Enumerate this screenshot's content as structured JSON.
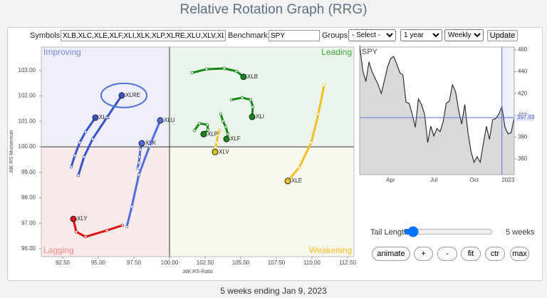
{
  "header": {
    "title": "Relative Rotation Graph (RRG)"
  },
  "controls": {
    "symbols_label": "Symbols:",
    "symbols": "XLB,XLC,XLE,XLF,XLI,XLK,XLP,XLRE,XLU,XLV,XL",
    "benchmark_label": "Benchmark:",
    "benchmark": "SPY",
    "groups_label": "Groups:",
    "groups": "- Select -",
    "period": "1 year",
    "interval": "Weekly",
    "update": "Update"
  },
  "chart_data": [
    {
      "type": "rrg",
      "xlabel": "JdK RS-Ratio",
      "ylabel": "JdK RS-Momentum",
      "center": 100,
      "quadrants": [
        {
          "label": "Improving",
          "color": "#7b86d6"
        },
        {
          "label": "Leading",
          "color": "#3aa53a"
        },
        {
          "label": "Weakening",
          "color": "#f0c020"
        },
        {
          "label": "Lagging",
          "color": "#ee8a8a"
        }
      ],
      "xlim": [
        91.0,
        112.95
      ],
      "ylim": [
        95.69,
        103.92
      ],
      "xticks": [
        {
          "value": 92.5,
          "label": "92.50"
        },
        {
          "value": 95,
          "label": "95.00"
        },
        {
          "value": 97.5,
          "label": "97.50"
        },
        {
          "value": 100,
          "label": "100.00"
        },
        {
          "value": 102.5,
          "label": "102.50"
        },
        {
          "value": 105,
          "label": "105.00"
        },
        {
          "value": 107.5,
          "label": "107.50"
        },
        {
          "value": 110,
          "label": "110.00"
        },
        {
          "value": 112.5,
          "label": "112.50"
        }
      ],
      "yticks": [
        {
          "value": 96,
          "label": "96.00"
        },
        {
          "value": 97,
          "label": "97.00"
        },
        {
          "value": 98,
          "label": "98.00"
        },
        {
          "value": 99,
          "label": "99.00"
        },
        {
          "value": 100,
          "label": "100.00"
        },
        {
          "value": 101,
          "label": "101.00"
        },
        {
          "value": 102,
          "label": "102.00"
        },
        {
          "value": 103,
          "label": "103.00"
        }
      ],
      "series": [
        {
          "name": "XLB",
          "color": "#128a12",
          "x": [
            101.6,
            102.6,
            103.85,
            104.7,
            105.2
          ],
          "values": [
            102.91,
            103.05,
            103.08,
            102.97,
            102.75
          ]
        },
        {
          "name": "XLC",
          "color": "#3553c9",
          "x": [
            93.1,
            93.35,
            93.7,
            94.1,
            94.8
          ],
          "values": [
            99.22,
            99.66,
            100.17,
            100.59,
            101.15
          ]
        },
        {
          "name": "XLE",
          "color": "#f0c020",
          "x": [
            110.85,
            110.45,
            109.95,
            109.1,
            108.3
          ],
          "values": [
            102.41,
            101.29,
            100.17,
            99.19,
            98.66
          ]
        },
        {
          "name": "XLF",
          "color": "#128a12",
          "x": [
            103.6,
            103.75,
            103.95,
            104.1,
            104.0
          ],
          "values": [
            101.29,
            101.01,
            100.78,
            100.5,
            100.31
          ]
        },
        {
          "name": "XLI",
          "color": "#128a12",
          "x": [
            104.35,
            105.1,
            105.7,
            105.85,
            105.8
          ],
          "values": [
            101.85,
            101.93,
            101.85,
            101.57,
            101.18
          ]
        },
        {
          "name": "XLK",
          "color": "#4d6de0",
          "x": [
            97.75,
            97.85,
            97.9,
            97.95,
            98.05
          ],
          "values": [
            99.16,
            99.38,
            99.61,
            99.89,
            100.14
          ]
        },
        {
          "name": "XLP",
          "color": "#128a12",
          "x": [
            101.75,
            102.1,
            102.65,
            102.7,
            102.4
          ],
          "values": [
            100.64,
            100.92,
            100.87,
            100.67,
            100.5
          ]
        },
        {
          "name": "XLRE",
          "color": "#3553c9",
          "highlight": true,
          "x": [
            93.6,
            94.0,
            94.6,
            95.6,
            96.65
          ],
          "values": [
            98.88,
            99.61,
            100.31,
            101.15,
            102.02
          ]
        },
        {
          "name": "XLU",
          "color": "#4d6de0",
          "x": [
            97.0,
            97.35,
            97.85,
            98.6,
            99.35
          ],
          "values": [
            96.86,
            97.65,
            98.91,
            100.03,
            101.04
          ]
        },
        {
          "name": "XLV",
          "color": "#f0c020",
          "x": [
            103.5,
            103.4,
            103.3,
            103.25,
            103.2
          ],
          "values": [
            100.67,
            100.45,
            100.17,
            99.97,
            99.8
          ]
        },
        {
          "name": "XLY",
          "color": "#dd1111",
          "x": [
            96.7,
            95.6,
            94.1,
            93.45,
            93.25
          ],
          "values": [
            96.92,
            96.72,
            96.47,
            96.67,
            97.17
          ]
        }
      ]
    },
    {
      "type": "line",
      "title": "SPY",
      "color": "#222222",
      "current": 397.93,
      "ylim": [
        345.6,
        462.6
      ],
      "yticks": [
        360,
        380,
        400,
        420,
        440,
        460
      ],
      "categories": [
        null,
        null,
        null,
        null,
        null,
        null,
        null,
        null,
        null,
        null,
        "Apr",
        null,
        null,
        null,
        null,
        null,
        null,
        null,
        null,
        null,
        null,
        null,
        null,
        null,
        "Jul",
        null,
        null,
        null,
        null,
        null,
        null,
        null,
        null,
        null,
        null,
        null,
        null,
        "Oct",
        null,
        null,
        null,
        null,
        null,
        null,
        null,
        null,
        null,
        null,
        "2023",
        null,
        null
      ],
      "values": [
        464,
        441,
        431,
        449,
        440,
        434,
        428,
        420,
        432,
        444,
        452,
        454,
        447,
        439,
        437,
        412,
        411,
        401,
        389,
        415,
        410,
        401,
        375,
        390,
        381,
        388,
        385,
        394,
        411,
        413,
        428,
        422,
        405,
        392,
        410,
        385,
        367,
        357,
        362,
        357,
        374,
        390,
        378,
        396,
        397,
        401,
        408,
        389,
        383,
        384,
        397.93
      ]
    }
  ],
  "tail": {
    "label": "Tail Length:",
    "value": "5 weeks"
  },
  "buttons": [
    "animate",
    "+",
    "-",
    "fit",
    "ctr",
    "max"
  ],
  "footer": "5 weeks ending Jan 9, 2023"
}
